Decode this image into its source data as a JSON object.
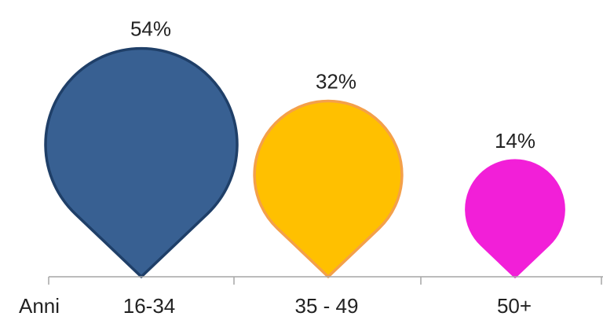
{
  "chart_data": {
    "type": "bar",
    "xlabel": "Anni",
    "categories": [
      "16-34",
      "35 - 49",
      "50+"
    ],
    "values": [
      54,
      32,
      14
    ],
    "value_labels": [
      "54%",
      "32%",
      "14%"
    ],
    "ylim": [
      0,
      100
    ],
    "grid": false,
    "legend": "none",
    "colors": [
      {
        "fill": "#386092",
        "stroke": "#1F3F68"
      },
      {
        "fill": "#FFC000",
        "stroke": "#F4A04A"
      },
      {
        "fill": "#F21FD8",
        "stroke": "#F21FD8"
      }
    ],
    "axis_color": "#A6A6A6"
  }
}
